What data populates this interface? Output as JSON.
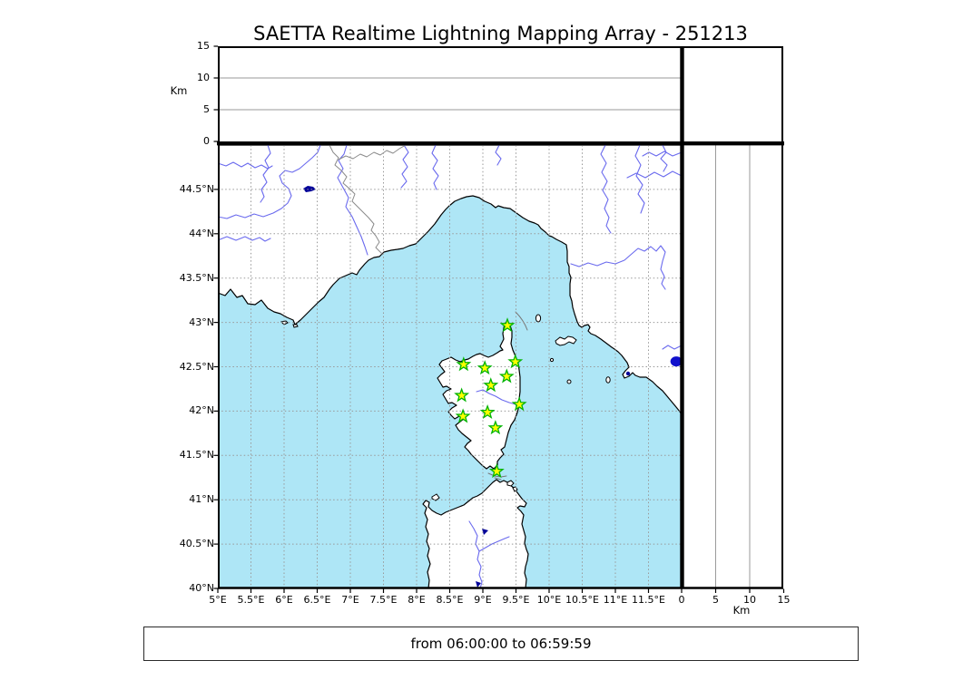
{
  "title": "SAETTA Realtime Lightning Mapping Array - 251213",
  "footer": {
    "text": "from 06:00:00 to 06:59:59"
  },
  "altitude_panel": {
    "axis_label": "Km",
    "ticks": [
      0,
      5,
      10,
      15
    ],
    "gridlines": [
      5,
      10
    ],
    "max_km": 15
  },
  "right_panel": {
    "axis_label": "Km",
    "ticks": [
      0,
      5,
      10,
      15
    ],
    "gridlines": [
      5,
      10
    ],
    "max_km": 15
  },
  "map": {
    "lon_min": 5,
    "lon_max": 12,
    "lat_min": 40,
    "lat_max": 45,
    "grid_step_deg": 0.5,
    "lon_ticks": [
      5,
      5.5,
      6,
      6.5,
      7,
      7.5,
      8,
      8.5,
      9,
      9.5,
      10,
      10.5,
      11,
      11.5
    ],
    "lon_tick_labels": [
      "5°E",
      "5.5°E",
      "6°E",
      "6.5°E",
      "7°E",
      "7.5°E",
      "8°E",
      "8.5°E",
      "9°E",
      "9.5°E",
      "10°E",
      "10.5°E",
      "11°E",
      "11.5°E"
    ],
    "lat_ticks": [
      40,
      40.5,
      41,
      41.5,
      42,
      42.5,
      43,
      43.5,
      44,
      44.5
    ],
    "lat_tick_labels": [
      "40°N",
      "40.5°N",
      "41°N",
      "41.5°N",
      "42°N",
      "42.5°N",
      "43°N",
      "43.5°N",
      "44°N",
      "44.5°N"
    ]
  },
  "stations": [
    {
      "lon": 9.37,
      "lat": 42.965
    },
    {
      "lon": 8.71,
      "lat": 42.525
    },
    {
      "lon": 9.03,
      "lat": 42.485
    },
    {
      "lon": 9.49,
      "lat": 42.555
    },
    {
      "lon": 9.36,
      "lat": 42.39
    },
    {
      "lon": 9.12,
      "lat": 42.29
    },
    {
      "lon": 8.68,
      "lat": 42.175
    },
    {
      "lon": 9.55,
      "lat": 42.075
    },
    {
      "lon": 8.7,
      "lat": 41.94
    },
    {
      "lon": 9.07,
      "lat": 41.985
    },
    {
      "lon": 9.19,
      "lat": 41.81
    },
    {
      "lon": 9.21,
      "lat": 41.32
    }
  ],
  "water_bodies": [
    {
      "name": "lake-bolsena",
      "lon": 11.92,
      "lat": 42.56,
      "rx": 6.5,
      "ry": 5.5
    }
  ],
  "colors": {
    "sea": "#aee6f6",
    "land": "#ffffff",
    "coast": "#000000",
    "river": "#6a6aee",
    "border_line": "#8a8a8a",
    "lake": "#1010cc",
    "small_lake": "#000099",
    "grid": "#999999",
    "station_fill": "#ffff00",
    "station_edge": "#00b400"
  }
}
